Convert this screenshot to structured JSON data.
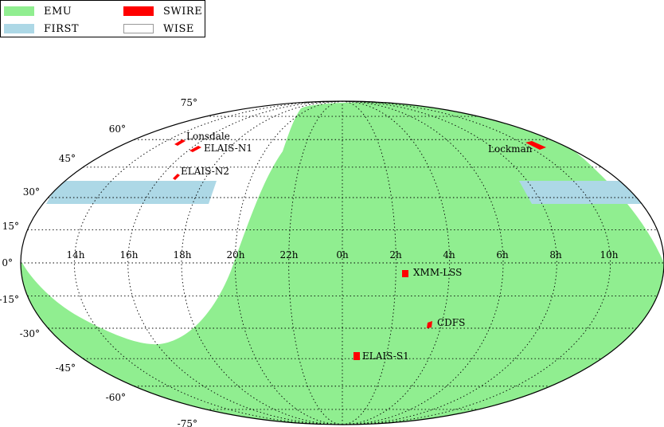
{
  "colors": {
    "emu": "#90ee90",
    "first": "#add8e6",
    "swire": "#ff0000",
    "wise": "#ffffff",
    "grid": "#000000"
  },
  "legend": [
    {
      "key": "emu",
      "label": "EMU"
    },
    {
      "key": "swire",
      "label": "SWIRE"
    },
    {
      "key": "first",
      "label": "FIRST"
    },
    {
      "key": "wise",
      "label": "WISE"
    }
  ],
  "projection": "Mollweide",
  "ra_labels": [
    "14h",
    "16h",
    "18h",
    "20h",
    "22h",
    "0h",
    "2h",
    "4h",
    "6h",
    "8h",
    "10h"
  ],
  "dec_labels": [
    "75°",
    "60°",
    "45°",
    "30°",
    "15°",
    "0°",
    "-15°",
    "-30°",
    "-45°",
    "-60°",
    "-75°"
  ],
  "fields": [
    {
      "name": "Lonsdale"
    },
    {
      "name": "ELAIS-N1"
    },
    {
      "name": "ELAIS-N2"
    },
    {
      "name": "Lockman"
    },
    {
      "name": "XMM-LSS"
    },
    {
      "name": "CDFS"
    },
    {
      "name": "ELAIS-S1"
    }
  ]
}
